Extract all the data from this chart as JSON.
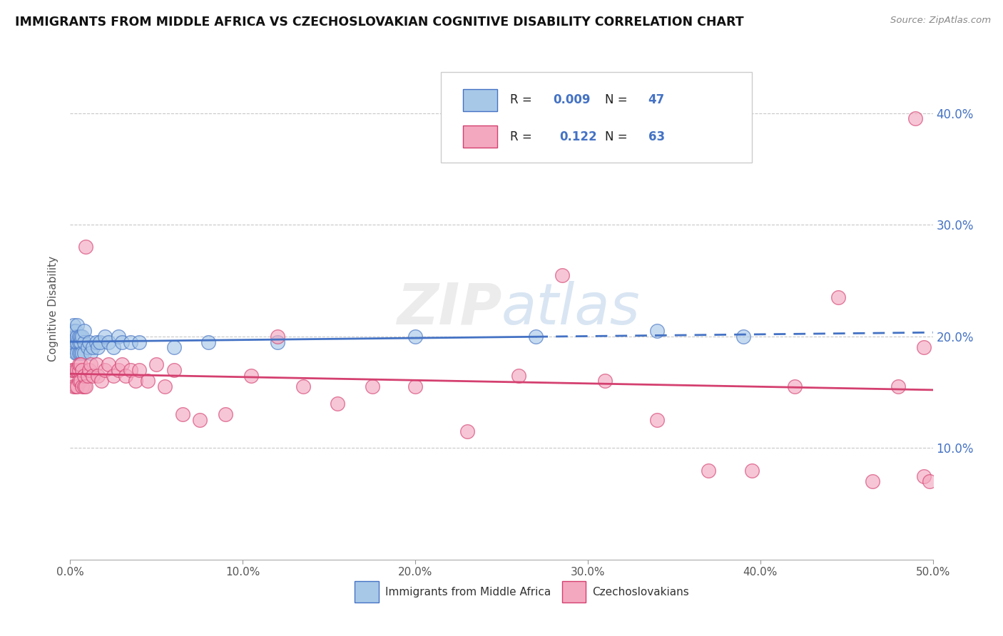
{
  "title": "IMMIGRANTS FROM MIDDLE AFRICA VS CZECHOSLOVAKIAN COGNITIVE DISABILITY CORRELATION CHART",
  "source": "Source: ZipAtlas.com",
  "xlabel_items": [
    "Immigrants from Middle Africa",
    "Czechoslovakians"
  ],
  "ylabel": "Cognitive Disability",
  "blue_R": 0.009,
  "blue_N": 47,
  "pink_R": 0.122,
  "pink_N": 63,
  "blue_color": "#a8c8e8",
  "pink_color": "#f4a8c0",
  "blue_line_color": "#4472C4",
  "pink_line_color": "#d44070",
  "bg_color": "#ffffff",
  "grid_color": "#c8c8c8",
  "xlim": [
    0.0,
    0.5
  ],
  "ylim": [
    0.0,
    0.45
  ],
  "yticks": [
    0.1,
    0.2,
    0.3,
    0.4
  ],
  "xticks": [
    0.0,
    0.1,
    0.2,
    0.3,
    0.4,
    0.5
  ],
  "blue_x": [
    0.001,
    0.001,
    0.001,
    0.002,
    0.002,
    0.002,
    0.002,
    0.003,
    0.003,
    0.003,
    0.003,
    0.004,
    0.004,
    0.004,
    0.004,
    0.005,
    0.005,
    0.005,
    0.006,
    0.006,
    0.006,
    0.007,
    0.007,
    0.008,
    0.008,
    0.008,
    0.01,
    0.011,
    0.012,
    0.013,
    0.015,
    0.016,
    0.017,
    0.02,
    0.022,
    0.025,
    0.028,
    0.03,
    0.035,
    0.04,
    0.06,
    0.08,
    0.12,
    0.2,
    0.27,
    0.34,
    0.39
  ],
  "blue_y": [
    0.195,
    0.2,
    0.205,
    0.19,
    0.2,
    0.205,
    0.21,
    0.185,
    0.195,
    0.2,
    0.205,
    0.185,
    0.195,
    0.2,
    0.21,
    0.185,
    0.195,
    0.2,
    0.185,
    0.195,
    0.2,
    0.185,
    0.2,
    0.185,
    0.195,
    0.205,
    0.19,
    0.195,
    0.185,
    0.19,
    0.195,
    0.19,
    0.195,
    0.2,
    0.195,
    0.19,
    0.2,
    0.195,
    0.195,
    0.195,
    0.19,
    0.195,
    0.195,
    0.2,
    0.2,
    0.205,
    0.2
  ],
  "pink_x": [
    0.001,
    0.001,
    0.002,
    0.002,
    0.003,
    0.003,
    0.004,
    0.004,
    0.005,
    0.005,
    0.005,
    0.006,
    0.006,
    0.007,
    0.007,
    0.008,
    0.008,
    0.009,
    0.009,
    0.01,
    0.011,
    0.012,
    0.013,
    0.015,
    0.016,
    0.018,
    0.02,
    0.022,
    0.025,
    0.028,
    0.03,
    0.032,
    0.035,
    0.038,
    0.04,
    0.045,
    0.05,
    0.055,
    0.06,
    0.065,
    0.075,
    0.09,
    0.105,
    0.12,
    0.135,
    0.155,
    0.175,
    0.2,
    0.23,
    0.26,
    0.285,
    0.31,
    0.34,
    0.37,
    0.395,
    0.42,
    0.445,
    0.465,
    0.48,
    0.49,
    0.495,
    0.495,
    0.498
  ],
  "pink_y": [
    0.165,
    0.17,
    0.155,
    0.17,
    0.155,
    0.17,
    0.155,
    0.17,
    0.16,
    0.17,
    0.175,
    0.16,
    0.175,
    0.155,
    0.17,
    0.155,
    0.165,
    0.28,
    0.155,
    0.165,
    0.17,
    0.175,
    0.165,
    0.175,
    0.165,
    0.16,
    0.17,
    0.175,
    0.165,
    0.17,
    0.175,
    0.165,
    0.17,
    0.16,
    0.17,
    0.16,
    0.175,
    0.155,
    0.17,
    0.13,
    0.125,
    0.13,
    0.165,
    0.2,
    0.155,
    0.14,
    0.155,
    0.155,
    0.115,
    0.165,
    0.255,
    0.16,
    0.125,
    0.08,
    0.08,
    0.155,
    0.235,
    0.07,
    0.155,
    0.395,
    0.075,
    0.19,
    0.07
  ]
}
